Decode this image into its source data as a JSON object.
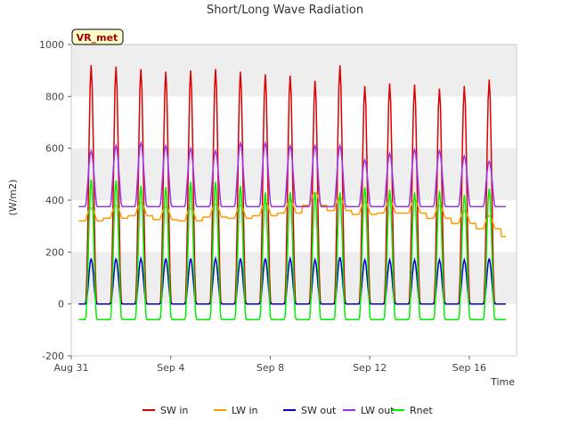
{
  "chart_data": {
    "type": "line",
    "title": "Short/Long Wave Radiation",
    "xlabel": "Time",
    "ylabel": "(W/m2)",
    "ylim": [
      -200,
      1000
    ],
    "yticks": [
      -200,
      0,
      200,
      400,
      600,
      800,
      1000
    ],
    "xlim_days": [
      0,
      17.9
    ],
    "xticks": [
      {
        "label": "Aug 31",
        "day": 0
      },
      {
        "label": "Sep 4",
        "day": 4
      },
      {
        "label": "Sep 8",
        "day": 8
      },
      {
        "label": "Sep 12",
        "day": 12
      },
      {
        "label": "Sep 16",
        "day": 16
      }
    ],
    "badge": "VR_met",
    "colors": {
      "SW in": "#dd0000",
      "LW in": "#ff9900",
      "SW out": "#0000cc",
      "LW out": "#9933ee",
      "Rnet": "#00ee00",
      "band": "#eeeeee",
      "grid": "#ffffff",
      "badge_bg": "#ffffcc"
    },
    "days": [
      0,
      1,
      2,
      3,
      4,
      5,
      6,
      7,
      8,
      9,
      10,
      11,
      12,
      13,
      14,
      15,
      16,
      17
    ],
    "series": [
      {
        "name": "SW in",
        "values": [
          920,
          915,
          905,
          895,
          900,
          905,
          895,
          885,
          880,
          860,
          920,
          840,
          850,
          845,
          830,
          840,
          865,
          0
        ]
      },
      {
        "name": "LW in",
        "values": [
          370,
          380,
          390,
          375,
          370,
          385,
          380,
          390,
          400,
          430,
          410,
          395,
          400,
          400,
          380,
          360,
          340,
          310
        ]
      },
      {
        "name": "SW out",
        "values": [
          175,
          175,
          175,
          175,
          175,
          175,
          175,
          175,
          175,
          170,
          180,
          170,
          170,
          170,
          170,
          170,
          175,
          0
        ]
      },
      {
        "name": "LW out",
        "values": [
          590,
          610,
          620,
          610,
          600,
          590,
          620,
          620,
          610,
          610,
          610,
          555,
          580,
          595,
          590,
          570,
          550,
          370
        ]
      },
      {
        "name": "Rnet",
        "values": [
          480,
          475,
          455,
          450,
          470,
          470,
          455,
          430,
          430,
          430,
          430,
          450,
          440,
          430,
          435,
          420,
          445,
          -60
        ]
      }
    ],
    "legend": [
      "SW in",
      "LW in",
      "SW out",
      "LW out",
      "Rnet"
    ]
  }
}
